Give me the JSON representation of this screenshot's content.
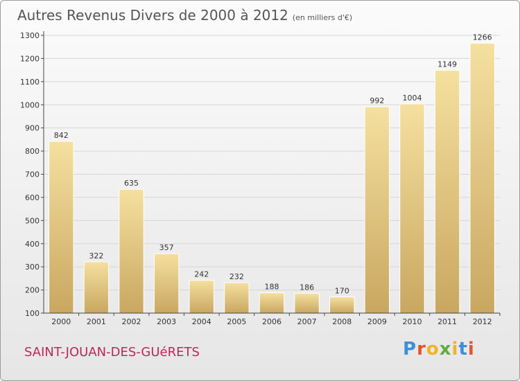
{
  "header": {
    "title": "Autres Revenus Divers de 2000 à 2012",
    "subtitle": "(en milliers d'€)"
  },
  "footer": {
    "commune": "SAINT-JOUAN-DES-GUéRETS",
    "logo_letters": [
      "P",
      "r",
      "o",
      "x",
      "i",
      "t",
      "i"
    ],
    "logo_colors": [
      "#3f8ed8",
      "#e0562b",
      "#f3b22a",
      "#5fae3f",
      "#f3b22a",
      "#3f8ed8",
      "#e0562b"
    ]
  },
  "colors": {
    "bar_light": "#f5e0a0",
    "bar_dark": "#c9a760",
    "grid": "#d6d6d6",
    "axis": "#444444"
  },
  "chart_data": {
    "type": "bar",
    "title": "Autres Revenus Divers de 2000 à 2012",
    "subtitle": "(en milliers d'€)",
    "categories": [
      "2000",
      "2001",
      "2002",
      "2003",
      "2004",
      "2005",
      "2006",
      "2007",
      "2008",
      "2009",
      "2010",
      "2011",
      "2012"
    ],
    "values": [
      842,
      322,
      635,
      357,
      242,
      232,
      188,
      186,
      170,
      992,
      1004,
      1149,
      1266
    ],
    "ylim": [
      100,
      1300
    ],
    "yticks": [
      100,
      200,
      300,
      400,
      500,
      600,
      700,
      800,
      900,
      1000,
      1100,
      1200,
      1300
    ],
    "grid": true,
    "data_labels": true
  }
}
